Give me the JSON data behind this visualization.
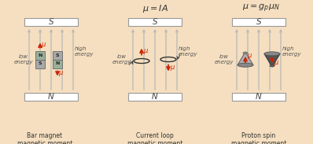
{
  "bg_color": "#f5dfc0",
  "white": "#ffffff",
  "gray": "#999999",
  "field_color": "#b8b8b8",
  "red": "#cc2200",
  "dark_gray": "#555555",
  "mid_gray": "#888888",
  "light_gray": "#bbbbbb",
  "magnet_n_color": "#9ab09a",
  "magnet_s_color": "#a0a0a0",
  "title1": "$\\mu = I A$",
  "title2": "$\\mu = g_p\\mu_N$",
  "label1": "Bar magnet\nmagnetic moment",
  "label2": "Current loop\nmagnetic moment",
  "label3": "Proton spin\nmagnetic moment"
}
